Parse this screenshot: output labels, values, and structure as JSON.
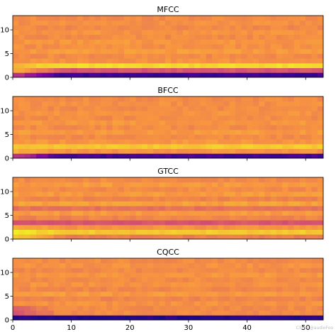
{
  "chart_data": [
    {
      "type": "heatmap",
      "title": "MFCC",
      "x": {
        "range": [
          0,
          53
        ],
        "ticks": [
          0,
          10,
          20,
          30,
          40,
          50
        ]
      },
      "y": {
        "range": [
          0,
          13
        ],
        "ticks": [
          0,
          5,
          10
        ]
      },
      "colormap": "plasma",
      "rows": [
        0.1,
        0.55,
        0.92,
        0.74,
        0.72,
        0.76,
        0.73,
        0.75,
        0.72,
        0.74,
        0.71,
        0.73,
        0.72
      ],
      "row_onset": [
        [
          0,
          0.45
        ],
        [
          1,
          0.82
        ],
        [
          2,
          0.85
        ]
      ]
    },
    {
      "type": "heatmap",
      "title": "BFCC",
      "x": {
        "range": [
          0,
          53
        ],
        "ticks": [
          0,
          10,
          20,
          30,
          40,
          50
        ]
      },
      "y": {
        "range": [
          0,
          13
        ],
        "ticks": [
          0,
          5,
          10
        ]
      },
      "colormap": "plasma",
      "rows": [
        0.12,
        0.75,
        0.88,
        0.75,
        0.72,
        0.76,
        0.72,
        0.75,
        0.72,
        0.74,
        0.72,
        0.73,
        0.72
      ],
      "row_onset": [
        [
          0,
          0.45
        ],
        [
          1,
          0.8
        ]
      ]
    },
    {
      "type": "heatmap",
      "title": "GTCC",
      "x": {
        "range": [
          0,
          53
        ],
        "ticks": [
          0,
          10,
          20,
          30,
          40,
          50
        ]
      },
      "y": {
        "range": [
          0,
          13
        ],
        "ticks": [
          0,
          5,
          10
        ]
      },
      "colormap": "plasma",
      "rows": [
        0.68,
        0.88,
        0.74,
        0.55,
        0.7,
        0.76,
        0.64,
        0.78,
        0.7,
        0.76,
        0.72,
        0.76,
        0.72
      ],
      "row_onset": [
        [
          0,
          0.9
        ],
        [
          1,
          0.95
        ],
        [
          2,
          0.8
        ]
      ]
    },
    {
      "type": "heatmap",
      "title": "CQCC",
      "x": {
        "range": [
          0,
          53
        ],
        "ticks": [
          0,
          10,
          20,
          30,
          40,
          50
        ]
      },
      "y": {
        "range": [
          0,
          13
        ],
        "ticks": [
          0,
          5,
          10
        ]
      },
      "colormap": "plasma",
      "rows": [
        0.05,
        0.72,
        0.72,
        0.74,
        0.7,
        0.76,
        0.71,
        0.74,
        0.72,
        0.75,
        0.71,
        0.74,
        0.72
      ],
      "row_onset": [
        [
          1,
          0.55
        ],
        [
          2,
          0.6
        ]
      ]
    }
  ],
  "watermark": "CSDN @audioFoo"
}
